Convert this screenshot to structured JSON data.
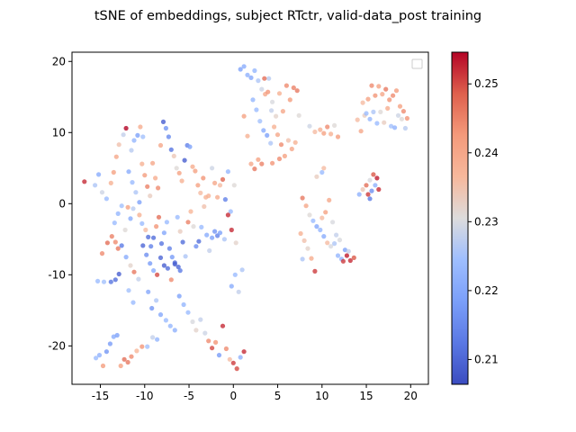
{
  "chart_data": {
    "type": "scatter",
    "title": "tSNE of embeddings, subject RTctr, valid-data_post training",
    "xlabel": "",
    "ylabel": "",
    "xlim": [
      -18.2,
      22
    ],
    "ylim": [
      -25.4,
      21.3
    ],
    "xticks": [
      -15,
      -10,
      -5,
      0,
      5,
      10,
      15,
      20
    ],
    "yticks": [
      -20,
      -10,
      0,
      10,
      20
    ],
    "colorbar": {
      "label": "",
      "range": [
        0.2064,
        0.2546
      ],
      "ticks": [
        0.21,
        0.22,
        0.23,
        0.24,
        0.25
      ],
      "colormap": "coolwarm"
    },
    "legend": {
      "placement": "top-right",
      "entries": []
    },
    "grid": false,
    "marker_alpha": 0.8,
    "points": [
      [
        -16.8,
        3.1,
        0.252
      ],
      [
        -15.6,
        2.6,
        0.226
      ],
      [
        -15.2,
        4.1,
        0.221
      ],
      [
        -14.8,
        1.6,
        0.229
      ],
      [
        -14.3,
        0.7,
        0.224
      ],
      [
        -13.8,
        2.9,
        0.238
      ],
      [
        -13.5,
        4.4,
        0.241
      ],
      [
        -13.2,
        6.6,
        0.24
      ],
      [
        -12.9,
        8.3,
        0.235
      ],
      [
        -12.4,
        9.7,
        0.228
      ],
      [
        -12.1,
        10.6,
        0.255
      ],
      [
        -11.5,
        7.5,
        0.227
      ],
      [
        -11.2,
        8.9,
        0.223
      ],
      [
        -10.8,
        9.6,
        0.219
      ],
      [
        -10.5,
        10.8,
        0.239
      ],
      [
        -10.2,
        9.4,
        0.225
      ],
      [
        -11.8,
        4.5,
        0.221
      ],
      [
        -11.4,
        3.0,
        0.224
      ],
      [
        -11.0,
        1.6,
        0.226
      ],
      [
        -10.6,
        0.2,
        0.219
      ],
      [
        -10.3,
        5.6,
        0.238
      ],
      [
        -10.0,
        4.0,
        0.242
      ],
      [
        -9.7,
        2.4,
        0.245
      ],
      [
        -9.4,
        1.1,
        0.233
      ],
      [
        -9.1,
        5.7,
        0.24
      ],
      [
        -8.8,
        3.6,
        0.239
      ],
      [
        -8.5,
        2.2,
        0.244
      ],
      [
        -8.2,
        8.2,
        0.24
      ],
      [
        -7.9,
        11.5,
        0.209
      ],
      [
        -7.6,
        10.6,
        0.217
      ],
      [
        -7.3,
        9.4,
        0.215
      ],
      [
        -7.0,
        7.6,
        0.212
      ],
      [
        -6.7,
        6.7,
        0.234
      ],
      [
        -6.4,
        5.0,
        0.231
      ],
      [
        -6.1,
        4.3,
        0.241
      ],
      [
        -5.8,
        3.2,
        0.238
      ],
      [
        -5.5,
        6.1,
        0.209
      ],
      [
        -5.2,
        8.2,
        0.214
      ],
      [
        -4.9,
        8.0,
        0.219
      ],
      [
        -4.6,
        5.2,
        0.239
      ],
      [
        -4.3,
        4.6,
        0.241
      ],
      [
        -4.0,
        2.6,
        0.241
      ],
      [
        -3.7,
        1.5,
        0.236
      ],
      [
        -3.4,
        3.6,
        0.243
      ],
      [
        -3.1,
        0.9,
        0.238
      ],
      [
        -2.8,
        1.1,
        0.238
      ],
      [
        -2.4,
        5.0,
        0.229
      ],
      [
        -2.1,
        2.9,
        0.24
      ],
      [
        -1.8,
        0.9,
        0.239
      ],
      [
        -1.5,
        2.6,
        0.236
      ],
      [
        -1.2,
        3.4,
        0.248
      ],
      [
        -0.9,
        0.6,
        0.214
      ],
      [
        -0.6,
        4.5,
        0.223
      ],
      [
        -0.3,
        -1.1,
        0.224
      ],
      [
        0.1,
        2.6,
        0.231
      ],
      [
        -13.4,
        -2.7,
        0.224
      ],
      [
        -13.0,
        -1.4,
        0.223
      ],
      [
        -12.6,
        -0.3,
        0.225
      ],
      [
        -12.2,
        -3.7,
        0.231
      ],
      [
        -11.9,
        -0.5,
        0.241
      ],
      [
        -11.6,
        -2.1,
        0.221
      ],
      [
        -11.3,
        -0.7,
        0.227
      ],
      [
        -10.6,
        -1.6,
        0.238
      ],
      [
        -10.3,
        -2.8,
        0.224
      ],
      [
        -9.9,
        -3.7,
        0.236
      ],
      [
        -9.6,
        -4.7,
        0.211
      ],
      [
        -9.3,
        -6.0,
        0.214
      ],
      [
        -9.0,
        -4.8,
        0.211
      ],
      [
        -8.7,
        -3.2,
        0.243
      ],
      [
        -8.4,
        -1.9,
        0.247
      ],
      [
        -8.1,
        -5.6,
        0.212
      ],
      [
        -7.8,
        -4.1,
        0.22
      ],
      [
        -7.5,
        -2.6,
        0.224
      ],
      [
        -7.2,
        -6.3,
        0.214
      ],
      [
        -6.9,
        -7.5,
        0.218
      ],
      [
        -6.6,
        -8.3,
        0.21
      ],
      [
        -6.3,
        -1.9,
        0.224
      ],
      [
        -6.0,
        -3.9,
        0.233
      ],
      [
        -5.7,
        -5.4,
        0.211
      ],
      [
        -5.4,
        -7.4,
        0.226
      ],
      [
        -5.1,
        -2.6,
        0.245
      ],
      [
        -4.8,
        -1.1,
        0.237
      ],
      [
        -4.5,
        -3.2,
        0.231
      ],
      [
        -4.2,
        -6.0,
        0.216
      ],
      [
        -3.9,
        -5.3,
        0.211
      ],
      [
        -3.6,
        -3.3,
        0.224
      ],
      [
        -3.3,
        -0.4,
        0.235
      ],
      [
        -3.0,
        -4.4,
        0.221
      ],
      [
        -2.7,
        -6.6,
        0.228
      ],
      [
        -2.4,
        -4.8,
        0.219
      ],
      [
        -2.1,
        -3.9,
        0.217
      ],
      [
        -1.8,
        -4.5,
        0.214
      ],
      [
        -1.5,
        -4.1,
        0.219
      ],
      [
        -1.0,
        -5.0,
        0.226
      ],
      [
        -0.6,
        -1.6,
        0.252
      ],
      [
        -0.2,
        -3.7,
        0.252
      ],
      [
        0.3,
        -5.5,
        0.232
      ],
      [
        -14.8,
        -7.0,
        0.244
      ],
      [
        -14.2,
        -5.5,
        0.247
      ],
      [
        -13.7,
        -4.6,
        0.245
      ],
      [
        -13.3,
        -5.4,
        0.244
      ],
      [
        -13.0,
        -6.3,
        0.246
      ],
      [
        -12.6,
        -5.9,
        0.213
      ],
      [
        -12.1,
        -7.5,
        0.221
      ],
      [
        -11.6,
        -8.7,
        0.232
      ],
      [
        -11.2,
        -9.6,
        0.246
      ],
      [
        -10.7,
        -10.6,
        0.228
      ],
      [
        -10.2,
        -5.9,
        0.21
      ],
      [
        -9.8,
        -7.2,
        0.216
      ],
      [
        -9.4,
        -8.4,
        0.218
      ],
      [
        -9.0,
        -9.4,
        0.221
      ],
      [
        -8.6,
        -10.0,
        0.25
      ],
      [
        -8.2,
        -7.6,
        0.21
      ],
      [
        -7.8,
        -8.7,
        0.209
      ],
      [
        -7.4,
        -9.1,
        0.211
      ],
      [
        -7.0,
        -10.7,
        0.244
      ],
      [
        -6.6,
        -8.5,
        0.209
      ],
      [
        -6.2,
        -8.9,
        0.21
      ],
      [
        -6.0,
        -9.4,
        0.213
      ],
      [
        -15.3,
        -10.9,
        0.224
      ],
      [
        -14.6,
        -11.0,
        0.225
      ],
      [
        -13.8,
        -11.0,
        0.212
      ],
      [
        -13.3,
        -10.7,
        0.211
      ],
      [
        -12.9,
        -9.9,
        0.209
      ],
      [
        -11.8,
        -12.2,
        0.225
      ],
      [
        -11.3,
        -13.9,
        0.224
      ],
      [
        -9.6,
        -12.4,
        0.22
      ],
      [
        -9.2,
        -14.7,
        0.217
      ],
      [
        -8.7,
        -13.6,
        0.226
      ],
      [
        -8.2,
        -15.6,
        0.22
      ],
      [
        -7.6,
        -16.4,
        0.224
      ],
      [
        -7.1,
        -17.2,
        0.223
      ],
      [
        -6.6,
        -17.8,
        0.222
      ],
      [
        -6.1,
        -13.0,
        0.219
      ],
      [
        -5.6,
        -14.2,
        0.223
      ],
      [
        -5.1,
        -15.3,
        0.224
      ],
      [
        -4.6,
        -16.6,
        0.23
      ],
      [
        -4.2,
        -17.8,
        0.232
      ],
      [
        -3.7,
        -16.3,
        0.228
      ],
      [
        -3.2,
        -18.2,
        0.229
      ],
      [
        -2.8,
        -19.3,
        0.244
      ],
      [
        -2.4,
        -20.3,
        0.25
      ],
      [
        -2.0,
        -19.5,
        0.243
      ],
      [
        -1.6,
        -21.3,
        0.218
      ],
      [
        -1.2,
        -17.2,
        0.252
      ],
      [
        -0.8,
        -20.4,
        0.244
      ],
      [
        -0.4,
        -21.9,
        0.236
      ],
      [
        0.0,
        -22.4,
        0.251
      ],
      [
        0.4,
        -23.2,
        0.25
      ],
      [
        0.8,
        -21.6,
        0.222
      ],
      [
        1.2,
        -20.8,
        0.252
      ],
      [
        -15.5,
        -21.7,
        0.224
      ],
      [
        -15.1,
        -21.3,
        0.222
      ],
      [
        -14.7,
        -22.8,
        0.242
      ],
      [
        -14.3,
        -20.8,
        0.217
      ],
      [
        -13.9,
        -19.7,
        0.218
      ],
      [
        -13.5,
        -18.7,
        0.221
      ],
      [
        -13.1,
        -18.5,
        0.219
      ],
      [
        -12.7,
        -22.8,
        0.241
      ],
      [
        -12.3,
        -21.9,
        0.247
      ],
      [
        -11.9,
        -22.3,
        0.246
      ],
      [
        -11.5,
        -21.5,
        0.244
      ],
      [
        -10.9,
        -20.7,
        0.237
      ],
      [
        -10.3,
        -20.1,
        0.243
      ],
      [
        -9.7,
        -20.1,
        0.225
      ],
      [
        -9.1,
        -18.8,
        0.228
      ],
      [
        -8.6,
        -19.1,
        0.223
      ],
      [
        -0.2,
        -11.6,
        0.221
      ],
      [
        0.2,
        -10.0,
        0.224
      ],
      [
        0.6,
        -12.4,
        0.228
      ],
      [
        1.0,
        -9.3,
        0.226
      ],
      [
        0.8,
        18.9,
        0.219
      ],
      [
        1.2,
        19.3,
        0.221
      ],
      [
        1.6,
        18.1,
        0.222
      ],
      [
        2.0,
        17.7,
        0.22
      ],
      [
        2.4,
        18.7,
        0.223
      ],
      [
        2.8,
        17.3,
        0.226
      ],
      [
        3.2,
        16.1,
        0.229
      ],
      [
        3.6,
        15.4,
        0.24
      ],
      [
        4.0,
        17.6,
        0.227
      ],
      [
        4.4,
        14.3,
        0.23
      ],
      [
        4.8,
        12.3,
        0.232
      ],
      [
        5.2,
        15.5,
        0.238
      ],
      [
        5.6,
        13.0,
        0.24
      ],
      [
        6.0,
        16.6,
        0.244
      ],
      [
        6.4,
        14.6,
        0.242
      ],
      [
        6.8,
        16.3,
        0.245
      ],
      [
        7.2,
        15.9,
        0.246
      ],
      [
        3.5,
        17.6,
        0.247
      ],
      [
        3.9,
        15.7,
        0.243
      ],
      [
        4.3,
        13.1,
        0.228
      ],
      [
        2.2,
        14.6,
        0.223
      ],
      [
        2.6,
        13.2,
        0.224
      ],
      [
        3.0,
        11.6,
        0.225
      ],
      [
        3.4,
        10.3,
        0.221
      ],
      [
        3.8,
        9.6,
        0.219
      ],
      [
        4.2,
        8.5,
        0.226
      ],
      [
        4.6,
        10.8,
        0.238
      ],
      [
        5.0,
        9.7,
        0.24
      ],
      [
        5.4,
        8.3,
        0.244
      ],
      [
        5.8,
        6.7,
        0.241
      ],
      [
        6.2,
        8.9,
        0.235
      ],
      [
        6.6,
        7.7,
        0.24
      ],
      [
        7.0,
        8.6,
        0.238
      ],
      [
        7.4,
        12.4,
        0.231
      ],
      [
        1.2,
        12.3,
        0.241
      ],
      [
        1.6,
        9.5,
        0.238
      ],
      [
        2.0,
        5.6,
        0.24
      ],
      [
        2.4,
        4.9,
        0.246
      ],
      [
        2.8,
        6.2,
        0.241
      ],
      [
        3.2,
        5.6,
        0.245
      ],
      [
        4.4,
        5.7,
        0.243
      ],
      [
        5.2,
        6.3,
        0.244
      ],
      [
        8.6,
        10.9,
        0.229
      ],
      [
        9.2,
        10.1,
        0.236
      ],
      [
        9.8,
        10.4,
        0.238
      ],
      [
        10.2,
        9.9,
        0.241
      ],
      [
        10.6,
        10.8,
        0.244
      ],
      [
        11.0,
        9.8,
        0.238
      ],
      [
        11.4,
        11.0,
        0.231
      ],
      [
        11.8,
        9.4,
        0.242
      ],
      [
        9.4,
        3.8,
        0.233
      ],
      [
        10.0,
        4.4,
        0.224
      ],
      [
        10.2,
        5.0,
        0.236
      ],
      [
        7.8,
        0.8,
        0.246
      ],
      [
        8.2,
        -0.3,
        0.24
      ],
      [
        8.6,
        -1.6,
        0.231
      ],
      [
        9.0,
        -2.4,
        0.224
      ],
      [
        9.4,
        -3.2,
        0.22
      ],
      [
        9.8,
        -3.7,
        0.223
      ],
      [
        10.2,
        -4.6,
        0.221
      ],
      [
        10.6,
        -5.5,
        0.236
      ],
      [
        11.0,
        -6.0,
        0.23
      ],
      [
        11.4,
        -5.6,
        0.226
      ],
      [
        11.8,
        -7.3,
        0.223
      ],
      [
        12.2,
        -7.8,
        0.222
      ],
      [
        12.6,
        -6.5,
        0.219
      ],
      [
        13.0,
        -6.7,
        0.228
      ],
      [
        7.6,
        -4.2,
        0.238
      ],
      [
        8.0,
        -5.2,
        0.235
      ],
      [
        8.4,
        -6.3,
        0.232
      ],
      [
        8.8,
        -7.7,
        0.239
      ],
      [
        9.2,
        -9.5,
        0.251
      ],
      [
        10.0,
        -2.0,
        0.236
      ],
      [
        10.4,
        -1.2,
        0.241
      ],
      [
        10.8,
        0.5,
        0.24
      ],
      [
        11.2,
        -2.6,
        0.23
      ],
      [
        11.6,
        -4.4,
        0.228
      ],
      [
        12.0,
        -5.1,
        0.23
      ],
      [
        12.4,
        -8.1,
        0.251
      ],
      [
        12.8,
        -7.3,
        0.253
      ],
      [
        13.2,
        -8.0,
        0.252
      ],
      [
        13.6,
        -7.6,
        0.249
      ],
      [
        7.8,
        -7.8,
        0.226
      ],
      [
        14.0,
        11.8,
        0.236
      ],
      [
        14.4,
        10.2,
        0.24
      ],
      [
        14.8,
        12.4,
        0.233
      ],
      [
        15.2,
        14.7,
        0.241
      ],
      [
        15.6,
        16.6,
        0.244
      ],
      [
        16.0,
        15.2,
        0.243
      ],
      [
        16.4,
        16.5,
        0.241
      ],
      [
        16.8,
        15.4,
        0.24
      ],
      [
        17.2,
        16.1,
        0.246
      ],
      [
        17.6,
        14.6,
        0.243
      ],
      [
        18.0,
        15.2,
        0.244
      ],
      [
        18.4,
        15.9,
        0.242
      ],
      [
        18.8,
        13.7,
        0.241
      ],
      [
        19.2,
        13.0,
        0.244
      ],
      [
        19.6,
        12.0,
        0.243
      ],
      [
        14.6,
        14.2,
        0.236
      ],
      [
        15.0,
        12.7,
        0.224
      ],
      [
        15.4,
        11.9,
        0.223
      ],
      [
        15.8,
        12.9,
        0.226
      ],
      [
        16.2,
        11.3,
        0.224
      ],
      [
        16.6,
        12.9,
        0.231
      ],
      [
        17.0,
        11.4,
        0.233
      ],
      [
        17.4,
        13.4,
        0.239
      ],
      [
        17.8,
        10.9,
        0.225
      ],
      [
        18.2,
        10.7,
        0.222
      ],
      [
        18.6,
        12.4,
        0.229
      ],
      [
        19.0,
        11.9,
        0.231
      ],
      [
        19.4,
        10.6,
        0.227
      ],
      [
        14.2,
        1.3,
        0.222
      ],
      [
        14.6,
        2.0,
        0.234
      ],
      [
        15.0,
        2.6,
        0.247
      ],
      [
        15.4,
        3.3,
        0.23
      ],
      [
        15.8,
        4.1,
        0.249
      ],
      [
        16.2,
        3.6,
        0.253
      ],
      [
        16.0,
        2.6,
        0.222
      ],
      [
        15.6,
        1.8,
        0.216
      ],
      [
        16.4,
        2.0,
        0.252
      ],
      [
        15.2,
        1.3,
        0.251
      ],
      [
        15.4,
        0.7,
        0.213
      ]
    ]
  }
}
